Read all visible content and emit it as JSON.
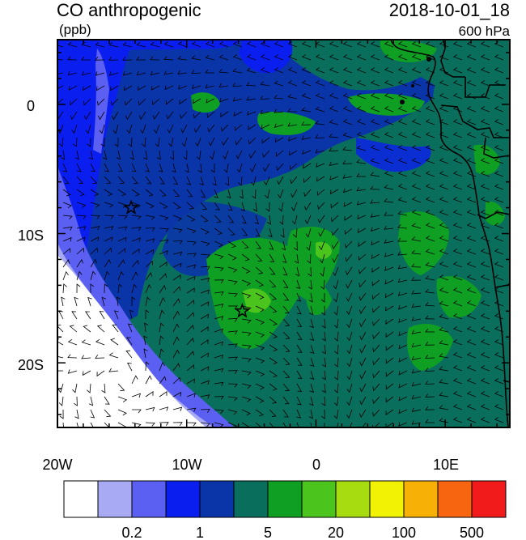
{
  "header": {
    "title": "CO anthropogenic",
    "units": "(ppb)",
    "datetime": "2018-10-01_18",
    "level": "600 hPa"
  },
  "axes": {
    "x_ticks": [
      "20W",
      "10W",
      "0",
      "10E"
    ],
    "y_ticks": [
      "0",
      "10S",
      "20S"
    ]
  },
  "colorbar": {
    "colors": [
      "#ffffff",
      "#a8aaf3",
      "#5c60f2",
      "#0a1ef0",
      "#0a35a8",
      "#0a6e5c",
      "#0fa023",
      "#4cc41e",
      "#a6dc10",
      "#f2f205",
      "#f7b005",
      "#f76510",
      "#f21b1b"
    ],
    "tick_labels": [
      "0.2",
      "1",
      "5",
      "20",
      "100",
      "500"
    ]
  },
  "markers": [
    {
      "name": "star-north",
      "lon": -14.3,
      "lat": -8.0
    },
    {
      "name": "star-south",
      "lon": -5.7,
      "lat": -16.0
    }
  ]
}
